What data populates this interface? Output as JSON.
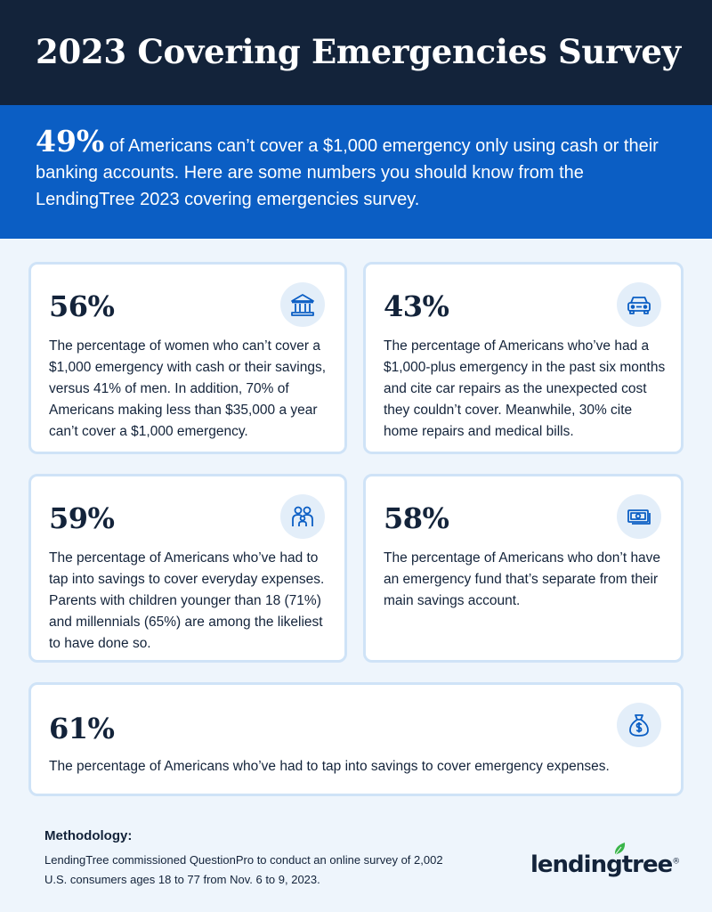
{
  "header": {
    "title": "2023 Covering Emergencies Survey"
  },
  "intro": {
    "highlight": "49%",
    "text": " of Americans can’t cover a $1,000 emergency only using cash or their banking accounts. Here are some numbers you should know from the LendingTree 2023 covering emergencies survey."
  },
  "colors": {
    "header_bg": "#13233a",
    "intro_bg": "#0b5ec4",
    "page_bg": "#eef5fc",
    "card_border": "#cfe3f7",
    "icon_color": "#0b5ec4",
    "logo_leaf": "#3ab54a"
  },
  "cards": [
    {
      "percent": "56%",
      "icon": "bank-icon",
      "text": "The percentage of women who can’t cover a $1,000 emergency with cash or their savings, versus 41% of men. In addition, 70% of Americans making less than $35,000 a year can’t cover a $1,000 emergency."
    },
    {
      "percent": "43%",
      "icon": "car-icon",
      "text": "The percentage of Americans who’ve had a $1,000-plus emergency in the past six months and cite car repairs as the unexpected cost they couldn’t cover. Meanwhile, 30% cite home repairs and medical bills."
    },
    {
      "percent": "59%",
      "icon": "family-icon",
      "text": "The percentage of Americans who’ve had to tap into savings to cover everyday expenses. Parents with children younger than 18 (71%) and millennials (65%) are among the likeliest to have done so."
    },
    {
      "percent": "58%",
      "icon": "cash-icon",
      "text": "The percentage of Americans who don’t have an emergency fund that’s separate from their main savings account."
    },
    {
      "percent": "61%",
      "icon": "money-bag-icon",
      "text": "The percentage of Americans who’ve had to tap into savings to cover emergency expenses."
    }
  ],
  "methodology": {
    "title": "Methodology:",
    "text": "LendingTree commissioned QuestionPro to conduct an online survey of 2,002 U.S. consumers ages 18 to 77 from Nov. 6 to 9, 2023."
  },
  "logo": {
    "text": "lendingtree",
    "mark": "®"
  }
}
